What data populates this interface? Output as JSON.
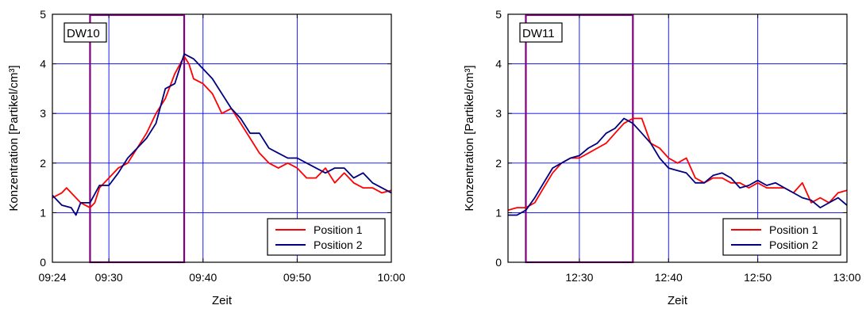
{
  "chart_data": [
    {
      "type": "line",
      "panel_label": "DW10",
      "xlabel": "Zeit",
      "ylabel": "Konzentration [Partikel/cm³]",
      "xlim": [
        "09:24",
        "10:00"
      ],
      "ylim": [
        0,
        5
      ],
      "y_ticks": [
        "0",
        "1",
        "2",
        "3",
        "4",
        "5"
      ],
      "x_ticks": [
        "09:24",
        "09:30",
        "09:40",
        "09:50",
        "10:00"
      ],
      "grid_x": [
        "09:30",
        "09:40",
        "09:50"
      ],
      "grid_y": [
        1,
        2,
        3,
        4
      ],
      "grid": true,
      "highlight": {
        "x_start": "09:28",
        "x_end": "09:38",
        "color": "#800080"
      },
      "legend_placement": "bottom-right",
      "series": [
        {
          "name": "Position 1",
          "color": "#ff0000",
          "points": [
            [
              "09:24",
              1.3
            ],
            [
              "09:25",
              1.4
            ],
            [
              "09:25:30",
              1.5
            ],
            [
              "09:26",
              1.4
            ],
            [
              "09:27",
              1.2
            ],
            [
              "09:28",
              1.1
            ],
            [
              "09:28:30",
              1.2
            ],
            [
              "09:29",
              1.5
            ],
            [
              "09:30",
              1.7
            ],
            [
              "09:31",
              1.9
            ],
            [
              "09:32",
              2.0
            ],
            [
              "09:33",
              2.3
            ],
            [
              "09:34",
              2.6
            ],
            [
              "09:35",
              3.0
            ],
            [
              "09:36",
              3.3
            ],
            [
              "09:37",
              3.8
            ],
            [
              "09:38",
              4.15
            ],
            [
              "09:38:30",
              4.0
            ],
            [
              "09:39",
              3.7
            ],
            [
              "09:40",
              3.6
            ],
            [
              "09:41",
              3.4
            ],
            [
              "09:42",
              3.0
            ],
            [
              "09:43",
              3.1
            ],
            [
              "09:44",
              2.8
            ],
            [
              "09:45",
              2.5
            ],
            [
              "09:46",
              2.2
            ],
            [
              "09:47",
              2.0
            ],
            [
              "09:48",
              1.9
            ],
            [
              "09:49",
              2.0
            ],
            [
              "09:50",
              1.9
            ],
            [
              "09:51",
              1.7
            ],
            [
              "09:52",
              1.7
            ],
            [
              "09:53",
              1.9
            ],
            [
              "09:54",
              1.6
            ],
            [
              "09:55",
              1.8
            ],
            [
              "09:56",
              1.6
            ],
            [
              "09:57",
              1.5
            ],
            [
              "09:58",
              1.5
            ],
            [
              "09:59",
              1.4
            ],
            [
              "10:00",
              1.45
            ]
          ]
        },
        {
          "name": "Position 2",
          "color": "#000080",
          "points": [
            [
              "09:24",
              1.35
            ],
            [
              "09:25",
              1.15
            ],
            [
              "09:26",
              1.1
            ],
            [
              "09:26:30",
              0.95
            ],
            [
              "09:27",
              1.2
            ],
            [
              "09:28",
              1.2
            ],
            [
              "09:29",
              1.55
            ],
            [
              "09:30",
              1.55
            ],
            [
              "09:31",
              1.8
            ],
            [
              "09:32",
              2.1
            ],
            [
              "09:33",
              2.3
            ],
            [
              "09:34",
              2.5
            ],
            [
              "09:35",
              2.8
            ],
            [
              "09:36",
              3.5
            ],
            [
              "09:37",
              3.6
            ],
            [
              "09:38",
              4.2
            ],
            [
              "09:39",
              4.1
            ],
            [
              "09:40",
              3.9
            ],
            [
              "09:41",
              3.7
            ],
            [
              "09:42",
              3.4
            ],
            [
              "09:43",
              3.1
            ],
            [
              "09:44",
              2.9
            ],
            [
              "09:45",
              2.6
            ],
            [
              "09:46",
              2.6
            ],
            [
              "09:47",
              2.3
            ],
            [
              "09:48",
              2.2
            ],
            [
              "09:49",
              2.1
            ],
            [
              "09:50",
              2.1
            ],
            [
              "09:51",
              2.0
            ],
            [
              "09:52",
              1.9
            ],
            [
              "09:53",
              1.8
            ],
            [
              "09:54",
              1.9
            ],
            [
              "09:55",
              1.9
            ],
            [
              "09:56",
              1.7
            ],
            [
              "09:57",
              1.8
            ],
            [
              "09:58",
              1.6
            ],
            [
              "09:59",
              1.5
            ],
            [
              "10:00",
              1.4
            ]
          ]
        }
      ]
    },
    {
      "type": "line",
      "panel_label": "DW11",
      "xlabel": "Zeit",
      "ylabel": "Konzentration [Partikel/cm³]",
      "xlim": [
        "12:22",
        "13:00"
      ],
      "ylim": [
        0,
        5
      ],
      "y_ticks": [
        "0",
        "1",
        "2",
        "3",
        "4",
        "5"
      ],
      "x_ticks": [
        "12:30",
        "12:40",
        "12:50",
        "13:00"
      ],
      "grid_x": [
        "12:30",
        "12:40",
        "12:50"
      ],
      "grid_y": [
        1,
        2,
        3,
        4
      ],
      "grid": true,
      "highlight": {
        "x_start": "12:24",
        "x_end": "12:36",
        "color": "#800080"
      },
      "legend_placement": "bottom-right",
      "series": [
        {
          "name": "Position 1",
          "color": "#ff0000",
          "points": [
            [
              "12:22",
              1.05
            ],
            [
              "12:23",
              1.1
            ],
            [
              "12:24",
              1.1
            ],
            [
              "12:25",
              1.2
            ],
            [
              "12:26",
              1.5
            ],
            [
              "12:27",
              1.8
            ],
            [
              "12:28",
              2.0
            ],
            [
              "12:29",
              2.1
            ],
            [
              "12:30",
              2.1
            ],
            [
              "12:31",
              2.2
            ],
            [
              "12:32",
              2.3
            ],
            [
              "12:33",
              2.4
            ],
            [
              "12:34",
              2.6
            ],
            [
              "12:35",
              2.8
            ],
            [
              "12:36",
              2.9
            ],
            [
              "12:37",
              2.9
            ],
            [
              "12:38",
              2.4
            ],
            [
              "12:39",
              2.3
            ],
            [
              "12:40",
              2.1
            ],
            [
              "12:41",
              2.0
            ],
            [
              "12:42",
              2.1
            ],
            [
              "12:43",
              1.7
            ],
            [
              "12:44",
              1.6
            ],
            [
              "12:45",
              1.7
            ],
            [
              "12:46",
              1.7
            ],
            [
              "12:47",
              1.6
            ],
            [
              "12:48",
              1.6
            ],
            [
              "12:49",
              1.5
            ],
            [
              "12:50",
              1.6
            ],
            [
              "12:51",
              1.5
            ],
            [
              "12:52",
              1.5
            ],
            [
              "12:53",
              1.5
            ],
            [
              "12:54",
              1.4
            ],
            [
              "12:55",
              1.6
            ],
            [
              "12:56",
              1.2
            ],
            [
              "12:57",
              1.3
            ],
            [
              "12:58",
              1.2
            ],
            [
              "12:59",
              1.4
            ],
            [
              "13:00",
              1.45
            ]
          ]
        },
        {
          "name": "Position 2",
          "color": "#000080",
          "points": [
            [
              "12:22",
              0.95
            ],
            [
              "12:23",
              0.95
            ],
            [
              "12:24",
              1.05
            ],
            [
              "12:25",
              1.3
            ],
            [
              "12:26",
              1.6
            ],
            [
              "12:27",
              1.9
            ],
            [
              "12:28",
              2.0
            ],
            [
              "12:29",
              2.1
            ],
            [
              "12:30",
              2.15
            ],
            [
              "12:31",
              2.3
            ],
            [
              "12:32",
              2.4
            ],
            [
              "12:33",
              2.6
            ],
            [
              "12:34",
              2.7
            ],
            [
              "12:35",
              2.9
            ],
            [
              "12:36",
              2.8
            ],
            [
              "12:37",
              2.6
            ],
            [
              "12:38",
              2.4
            ],
            [
              "12:39",
              2.1
            ],
            [
              "12:40",
              1.9
            ],
            [
              "12:41",
              1.85
            ],
            [
              "12:42",
              1.8
            ],
            [
              "12:43",
              1.6
            ],
            [
              "12:44",
              1.6
            ],
            [
              "12:45",
              1.75
            ],
            [
              "12:46",
              1.8
            ],
            [
              "12:47",
              1.7
            ],
            [
              "12:48",
              1.5
            ],
            [
              "12:49",
              1.55
            ],
            [
              "12:50",
              1.65
            ],
            [
              "12:51",
              1.55
            ],
            [
              "12:52",
              1.6
            ],
            [
              "12:53",
              1.5
            ],
            [
              "12:54",
              1.4
            ],
            [
              "12:55",
              1.3
            ],
            [
              "12:56",
              1.25
            ],
            [
              "12:57",
              1.1
            ],
            [
              "12:58",
              1.2
            ],
            [
              "12:59",
              1.3
            ],
            [
              "13:00",
              1.15
            ]
          ]
        }
      ]
    }
  ]
}
